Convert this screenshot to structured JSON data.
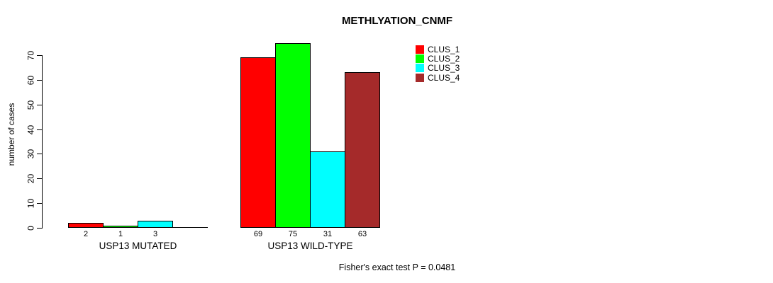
{
  "chart_data": {
    "type": "bar",
    "title": "METHLYATION_CNMF",
    "ylabel": "number of cases",
    "ylim": [
      0,
      70
    ],
    "yticks": [
      0,
      10,
      20,
      30,
      40,
      50,
      60,
      70
    ],
    "grid": false,
    "legend_position": "top-right",
    "series": [
      "CLUS_1",
      "CLUS_2",
      "CLUS_3",
      "CLUS_4"
    ],
    "colors": [
      "#FF0000",
      "#00FF00",
      "#00FFFF",
      "#A52A2A"
    ],
    "groups": [
      {
        "label": "USP13 MUTATED",
        "values": [
          2,
          1,
          3,
          0
        ],
        "value_labels": [
          "2",
          "1",
          "3",
          ""
        ]
      },
      {
        "label": "USP13 WILD-TYPE",
        "values": [
          69,
          75,
          31,
          63
        ],
        "value_labels": [
          "69",
          "75",
          "31",
          "63"
        ]
      }
    ],
    "annotation": "Fisher's exact test P = 0.0481"
  }
}
